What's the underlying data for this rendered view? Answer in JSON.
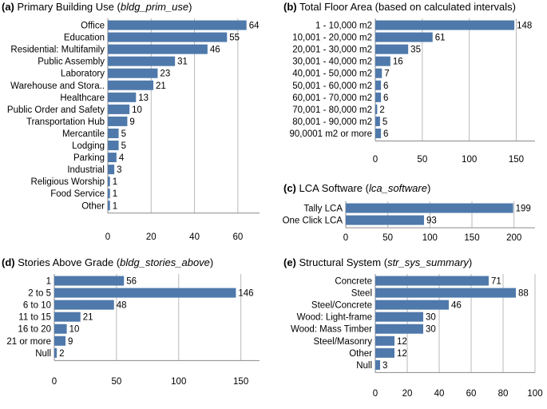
{
  "chart_data": [
    {
      "id": "a",
      "type": "bar",
      "orientation": "horizontal",
      "panel_label": "(a)",
      "title": "Primary Building Use",
      "field": "bldg_prim_use",
      "categories": [
        "Office",
        "Education",
        "Residential: Multifamily",
        "Public Assembly",
        "Laboratory",
        "Warehouse and Stora..",
        "Healthcare",
        "Public Order and Safety",
        "Transportation Hub",
        "Mercantile",
        "Lodging",
        "Parking",
        "Industrial",
        "Religious Worship",
        "Food Service",
        "Other"
      ],
      "values": [
        64,
        55,
        46,
        31,
        23,
        21,
        13,
        10,
        9,
        5,
        5,
        4,
        3,
        1,
        1,
        1
      ],
      "xlim": [
        0,
        70
      ],
      "xticks": [
        0,
        20,
        40,
        60
      ],
      "grid": true
    },
    {
      "id": "b",
      "type": "bar",
      "orientation": "horizontal",
      "panel_label": "(b)",
      "title": "Total Floor Area (based on calculated intervals)",
      "field": "",
      "categories": [
        "1 - 10,000 m2",
        "10,001 - 20,000 m2",
        "20,001 - 30,000 m2",
        "30,001 - 40,000 m2",
        "40,001 - 50,000 m2",
        "50,001 - 60,000 m2",
        "60,001 - 70,000 m2",
        "70,001 - 80,000 m2",
        "80,001 - 90,000 m2",
        "90,0001 m2 or more"
      ],
      "values": [
        148,
        61,
        35,
        16,
        7,
        6,
        6,
        2,
        5,
        6
      ],
      "xlim": [
        0,
        170
      ],
      "xticks": [
        0,
        50,
        100,
        150
      ],
      "grid": true
    },
    {
      "id": "c",
      "type": "bar",
      "orientation": "horizontal",
      "panel_label": "(c)",
      "title": "LCA Software",
      "field": "lca_software",
      "categories": [
        "Tally LCA",
        "One Click LCA"
      ],
      "values": [
        199,
        93
      ],
      "xlim": [
        0,
        225
      ],
      "xticks": [
        0,
        50,
        100,
        150,
        200
      ],
      "grid": true
    },
    {
      "id": "d",
      "type": "bar",
      "orientation": "horizontal",
      "panel_label": "(d)",
      "title": "Stories Above Grade",
      "field": "bldg_stories_above",
      "categories": [
        "1",
        "2 to 5",
        "6 to 10",
        "11 to 15",
        "16 to 20",
        "21 or more",
        "Null"
      ],
      "values": [
        56,
        146,
        48,
        21,
        10,
        9,
        2
      ],
      "xlim": [
        0,
        165
      ],
      "xticks": [
        0,
        50,
        100,
        150
      ],
      "grid": true
    },
    {
      "id": "e",
      "type": "bar",
      "orientation": "horizontal",
      "panel_label": "(e)",
      "title": "Structural System",
      "field": "str_sys_summary",
      "categories": [
        "Concrete",
        "Steel",
        "Steel/Concrete",
        "Wood: Light-frame",
        "Wood: Mass Timber",
        "Steel/Masonry",
        "Other",
        "Null"
      ],
      "values": [
        71,
        88,
        46,
        30,
        30,
        12,
        12,
        3
      ],
      "xlim": [
        0,
        100
      ],
      "xticks": [
        0,
        20,
        40,
        60,
        80,
        100
      ],
      "grid": true
    }
  ]
}
